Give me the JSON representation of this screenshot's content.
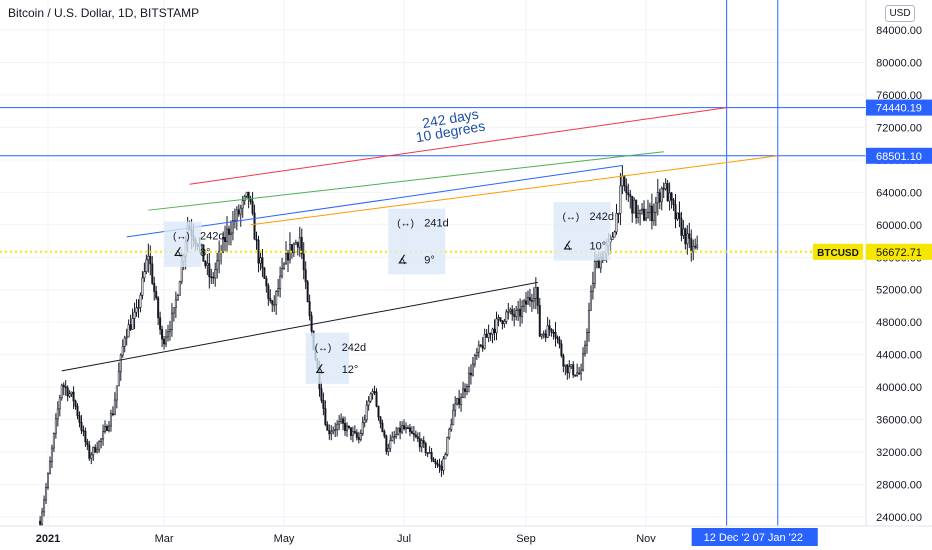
{
  "header": {
    "title": "Bitcoin / U.S. Dollar, 1D, BITSTAMP"
  },
  "axis": {
    "currency": "USD"
  },
  "colors": {
    "price_line": "#f7e600",
    "hline": "#2962ff",
    "badge": "#2962ff",
    "red": "#f23645",
    "green": "#4caf50",
    "blue": "#2962ff",
    "orange": "#ff9800",
    "black": "#131722",
    "annotation_text": "#1e4fa8",
    "measure_bg": "#dbe8f7"
  },
  "chart_data": {
    "type": "candlestick",
    "title": "Bitcoin / U.S. Dollar, 1D, BITSTAMP",
    "symbol": "BTCUSD",
    "ylim": [
      22500,
      88000
    ],
    "y_ticks": [
      24000,
      28000,
      32000,
      36000,
      40000,
      44000,
      48000,
      52000,
      56000,
      60000,
      64000,
      68000,
      72000,
      76000,
      80000,
      84000
    ],
    "x_ticks": [
      {
        "label": "2021",
        "date": "2021-01-01",
        "bold": true
      },
      {
        "label": "Mar",
        "date": "2021-03-01"
      },
      {
        "label": "May",
        "date": "2021-05-01"
      },
      {
        "label": "Jul",
        "date": "2021-07-01"
      },
      {
        "label": "Sep",
        "date": "2021-09-01"
      },
      {
        "label": "Nov",
        "date": "2021-11-01"
      }
    ],
    "last_price": {
      "label": "BTCUSD",
      "value": 56672.71
    },
    "horizontal_lines": [
      {
        "value": 74440.19,
        "label": "74440.19"
      },
      {
        "value": 68501.1,
        "label": "68501.10"
      }
    ],
    "vertical_lines": [
      {
        "date": "2021-12-12",
        "label": "12 Dec '2"
      },
      {
        "date": "2022-01-07",
        "label": "07 Jan '22"
      }
    ],
    "trend_lines": [
      {
        "color": "red",
        "from": {
          "date": "2021-03-14",
          "value": 65000
        },
        "to": {
          "date": "2021-12-12",
          "value": 74440.19
        }
      },
      {
        "color": "green",
        "from": {
          "date": "2021-02-21",
          "value": 61800
        },
        "to": {
          "date": "2021-11-10",
          "value": 69000
        }
      },
      {
        "color": "blue",
        "from": {
          "date": "2021-02-10",
          "value": 58500
        },
        "to": {
          "date": "2021-10-20",
          "value": 67300
        }
      },
      {
        "color": "orange",
        "from": {
          "date": "2021-04-14",
          "value": 60000
        },
        "to": {
          "date": "2022-01-07",
          "value": 68501.1
        }
      },
      {
        "color": "black",
        "from": {
          "date": "2021-01-08",
          "value": 42000
        },
        "to": {
          "date": "2021-09-07",
          "value": 52900
        }
      }
    ],
    "annotations": [
      {
        "text": "242 days",
        "date": "2021-07-25",
        "value": 72500,
        "angle": -10
      },
      {
        "text": "10 degrees",
        "date": "2021-07-25",
        "value": 70900,
        "angle": -10
      }
    ],
    "measurements": [
      {
        "days": "242d",
        "angle": "8°",
        "date_from": "2021-03-01",
        "date_to": "2021-03-20",
        "top": 60400,
        "bottom": 54800
      },
      {
        "days": "241d",
        "angle": "9°",
        "date_from": "2021-06-23",
        "date_to": "2021-07-22",
        "top": 62000,
        "bottom": 53900
      },
      {
        "days": "242d",
        "angle": "12°",
        "date_from": "2021-05-12",
        "date_to": "2021-06-03",
        "top": 46700,
        "bottom": 40400
      },
      {
        "days": "242d",
        "angle": "10°",
        "date_from": "2021-09-15",
        "date_to": "2021-10-14",
        "top": 62800,
        "bottom": 55600
      }
    ],
    "series": [
      {
        "name": "BTCUSD",
        "close_points": [
          {
            "date": "2020-12-28",
            "value": 23500
          },
          {
            "date": "2021-01-01",
            "value": 29000
          },
          {
            "date": "2021-01-08",
            "value": 40500
          },
          {
            "date": "2021-01-14",
            "value": 38500
          },
          {
            "date": "2021-01-22",
            "value": 31500
          },
          {
            "date": "2021-01-28",
            "value": 33500
          },
          {
            "date": "2021-02-03",
            "value": 37000
          },
          {
            "date": "2021-02-09",
            "value": 46500
          },
          {
            "date": "2021-02-15",
            "value": 49000
          },
          {
            "date": "2021-02-21",
            "value": 56500
          },
          {
            "date": "2021-02-28",
            "value": 45500
          },
          {
            "date": "2021-03-06",
            "value": 49000
          },
          {
            "date": "2021-03-13",
            "value": 60000
          },
          {
            "date": "2021-03-18",
            "value": 58000
          },
          {
            "date": "2021-03-25",
            "value": 53000
          },
          {
            "date": "2021-04-02",
            "value": 59000
          },
          {
            "date": "2021-04-13",
            "value": 63500
          },
          {
            "date": "2021-04-18",
            "value": 56000
          },
          {
            "date": "2021-04-25",
            "value": 49500
          },
          {
            "date": "2021-05-03",
            "value": 56500
          },
          {
            "date": "2021-05-09",
            "value": 58500
          },
          {
            "date": "2021-05-13",
            "value": 50000
          },
          {
            "date": "2021-05-19",
            "value": 40500
          },
          {
            "date": "2021-05-23",
            "value": 34500
          },
          {
            "date": "2021-05-30",
            "value": 35500
          },
          {
            "date": "2021-06-08",
            "value": 33500
          },
          {
            "date": "2021-06-15",
            "value": 40000
          },
          {
            "date": "2021-06-22",
            "value": 32500
          },
          {
            "date": "2021-06-30",
            "value": 35000
          },
          {
            "date": "2021-07-08",
            "value": 33500
          },
          {
            "date": "2021-07-20",
            "value": 29800
          },
          {
            "date": "2021-07-26",
            "value": 37000
          },
          {
            "date": "2021-08-01",
            "value": 40000
          },
          {
            "date": "2021-08-07",
            "value": 44000
          },
          {
            "date": "2021-08-14",
            "value": 47000
          },
          {
            "date": "2021-08-22",
            "value": 49000
          },
          {
            "date": "2021-08-28",
            "value": 48800
          },
          {
            "date": "2021-09-06",
            "value": 52200
          },
          {
            "date": "2021-09-08",
            "value": 46500
          },
          {
            "date": "2021-09-15",
            "value": 47500
          },
          {
            "date": "2021-09-21",
            "value": 42500
          },
          {
            "date": "2021-09-29",
            "value": 41500
          },
          {
            "date": "2021-10-06",
            "value": 55000
          },
          {
            "date": "2021-10-14",
            "value": 57500
          },
          {
            "date": "2021-10-20",
            "value": 65000
          },
          {
            "date": "2021-10-28",
            "value": 61000
          },
          {
            "date": "2021-11-04",
            "value": 61500
          },
          {
            "date": "2021-11-10",
            "value": 65000
          },
          {
            "date": "2021-11-16",
            "value": 61000
          },
          {
            "date": "2021-11-24",
            "value": 57000
          },
          {
            "date": "2021-11-28",
            "value": 56672.71
          }
        ]
      }
    ]
  }
}
